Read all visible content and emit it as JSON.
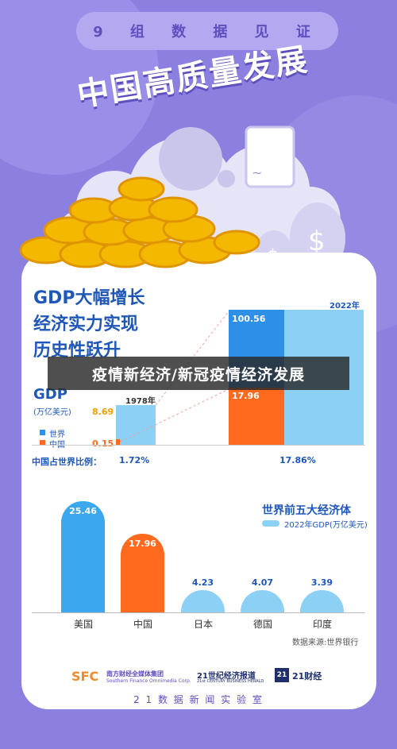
{
  "header": {
    "series_label": "9 组 数 据 见 证",
    "title": "中国高质量发展"
  },
  "section1": {
    "headline": [
      "GDP大幅增长",
      "经济实力实现",
      "历史性跃升"
    ],
    "gdp_title": "GDP",
    "gdp_unit": "(万亿美元)",
    "legend_world": "世界",
    "legend_china": "中国",
    "year_1978": "1978年",
    "year_2022": "2022年",
    "world_1978": "8.69",
    "china_1978": "0.15",
    "world_2022": "100.56",
    "china_2022": "17.96",
    "share_label": "中国占世界比例：",
    "share_1978": "1.72%",
    "share_2022": "17.86%"
  },
  "banner": "疫情新经济/新冠疫情经济发展",
  "section2": {
    "title": "世界前五大经济体",
    "legend": "2022年GDP(万亿美元)",
    "source": "数据来源:世界银行"
  },
  "chart_data": {
    "type": "bar",
    "categories": [
      "美国",
      "中国",
      "日本",
      "德国",
      "印度"
    ],
    "values": [
      25.46,
      17.96,
      4.23,
      4.07,
      3.39
    ],
    "colors": [
      "#3AA7EE",
      "#FF6A1F",
      "#8DD0F5",
      "#8DD0F5",
      "#8DD0F5"
    ]
  },
  "footer": {
    "logo1": "南方财经全媒体集团",
    "logo1_en": "Southern Finance Omnimedia Corp.",
    "logo2": "21世纪经济报道",
    "logo2_en": "21st CENTURY BUSINESS HERALD",
    "logo3": "21财经",
    "lab": "2 1 数 据 新 闻 实 验 室"
  }
}
